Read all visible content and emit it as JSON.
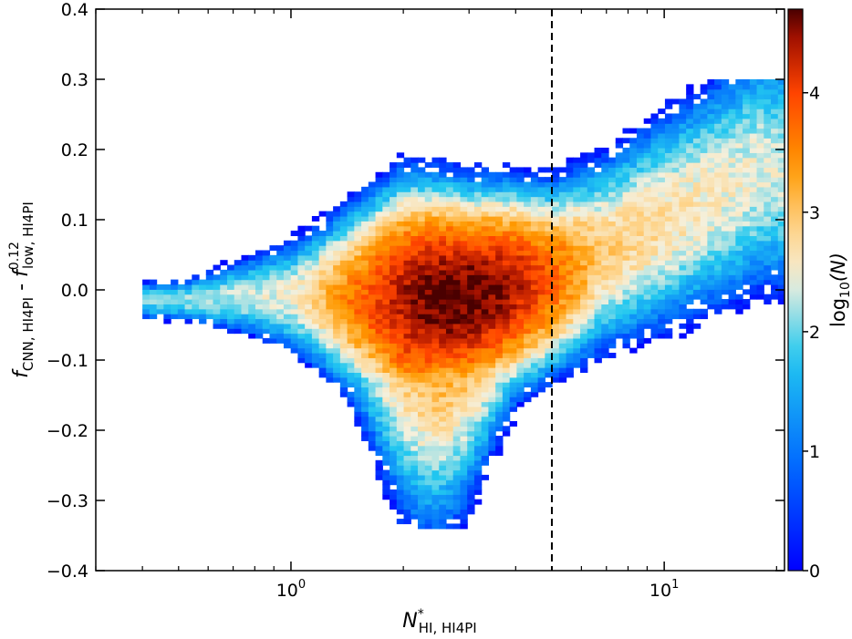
{
  "chart_data": {
    "type": "heatmap",
    "title": "",
    "xlabel": {
      "main": "N",
      "sup": "*",
      "sub": "HI, HI4PI"
    },
    "ylabel": {
      "part1_main": "f",
      "part1_sub": "CNN, HI4PI",
      "separator": " - ",
      "part2_main": "f",
      "part2_sup": "0.12",
      "part2_sub": "low, HI4PI"
    },
    "colorbar_label": {
      "pre": "log",
      "sub": "10",
      "post": "(N)"
    },
    "x_scale": "log",
    "xlim": [
      0.3,
      21
    ],
    "ylim": [
      -0.4,
      0.4
    ],
    "x_ticks": [
      {
        "value": 1,
        "base": "10",
        "exp": "0"
      },
      {
        "value": 10,
        "base": "10",
        "exp": "1"
      }
    ],
    "y_ticks": [
      {
        "value": 0.4,
        "label": "0.4"
      },
      {
        "value": 0.3,
        "label": "0.3"
      },
      {
        "value": 0.2,
        "label": "0.2"
      },
      {
        "value": 0.1,
        "label": "0.1"
      },
      {
        "value": 0.0,
        "label": "0.0"
      },
      {
        "value": -0.1,
        "label": "−0.1"
      },
      {
        "value": -0.2,
        "label": "−0.2"
      },
      {
        "value": -0.3,
        "label": "−0.3"
      },
      {
        "value": -0.4,
        "label": "−0.4"
      }
    ],
    "colorbar_range": [
      0,
      4.7
    ],
    "colorbar_ticks": [
      {
        "value": 0,
        "label": "0"
      },
      {
        "value": 1,
        "label": "1"
      },
      {
        "value": 2,
        "label": "2"
      },
      {
        "value": 3,
        "label": "3"
      },
      {
        "value": 4,
        "label": "4"
      }
    ],
    "vline_x": 5,
    "vline_style": "dashed",
    "colormap": [
      "#0000ff",
      "#0066ff",
      "#22c8f0",
      "#f5f0dc",
      "#ffd080",
      "#ff9900",
      "#ff4400",
      "#a01000",
      "#4a0000"
    ],
    "density_model": {
      "bin_count": {
        "x": 92,
        "y": 92
      },
      "peak_log10_count": 4.7,
      "ridge": [
        {
          "x": 0.5,
          "y": -0.015,
          "width": 0.015
        },
        {
          "x": 0.8,
          "y": -0.008,
          "width": 0.03
        },
        {
          "x": 1.2,
          "y": -0.01,
          "width": 0.05
        },
        {
          "x": 2.0,
          "y": -0.015,
          "width": 0.075
        },
        {
          "x": 3.0,
          "y": -0.01,
          "width": 0.065
        },
        {
          "x": 5.0,
          "y": 0.015,
          "width": 0.06
        },
        {
          "x": 8.0,
          "y": 0.07,
          "width": 0.07
        },
        {
          "x": 12.0,
          "y": 0.12,
          "width": 0.08
        },
        {
          "x": 18.0,
          "y": 0.17,
          "width": 0.09
        }
      ],
      "tail": [
        {
          "x": 1.5,
          "y": -0.12
        },
        {
          "x": 2.4,
          "y": -0.25
        },
        {
          "x": 3.2,
          "y": -0.22
        }
      ]
    }
  }
}
